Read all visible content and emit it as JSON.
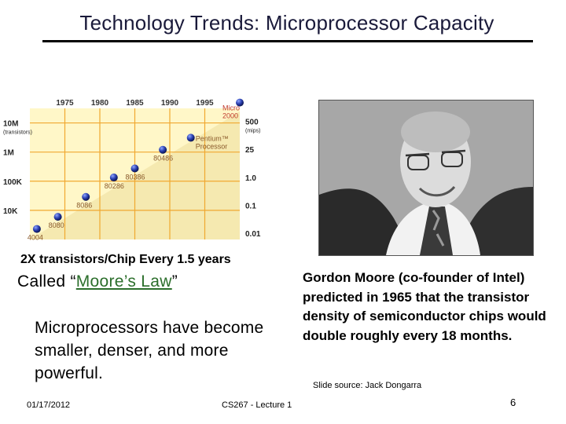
{
  "slide": {
    "title": "Technology Trends: Microprocessor Capacity",
    "caption": "2X transistors/Chip Every 1.5 years",
    "called_prefix": "Called “",
    "called_link": "Moore’s Law",
    "called_suffix": "”",
    "micro_text": "Microprocessors have become smaller, denser, and more powerful.",
    "quote": "Gordon Moore (co-founder of Intel) predicted in 1965 that the transistor density of semiconductor chips would double roughly every 18 months.",
    "source": "Slide source: Jack Dongarra",
    "date": "01/17/2012",
    "lecture": "CS267 - Lecture 1",
    "page_number": "6"
  },
  "photo": {
    "description_icon": "portrait-photo"
  },
  "chart_data": {
    "type": "scatter",
    "x_ticks": [
      "1975",
      "1980",
      "1985",
      "1990",
      "1995"
    ],
    "xlim": [
      1970,
      2000
    ],
    "left_axis": {
      "unit_label": "(transistors)",
      "ticks": [
        {
          "label": "10M",
          "value": 10000000
        },
        {
          "label": "1M",
          "value": 1000000
        },
        {
          "label": "100K",
          "value": 100000
        },
        {
          "label": "10K",
          "value": 10000
        }
      ],
      "scale": "log"
    },
    "right_axis": {
      "unit_label": "(mips)",
      "ticks": [
        "500",
        "25",
        "1.0",
        "0.1",
        "0.01"
      ]
    },
    "points": [
      {
        "label": "4004",
        "x": 1971,
        "y": 2300
      },
      {
        "label": "8080",
        "x": 1974,
        "y": 6000
      },
      {
        "label": "8086",
        "x": 1978,
        "y": 29000
      },
      {
        "label": "80286",
        "x": 1982,
        "y": 134000
      },
      {
        "label": "80386",
        "x": 1985,
        "y": 275000
      },
      {
        "label": "80486",
        "x": 1989,
        "y": 1200000
      },
      {
        "label": "Pentium™ Processor",
        "x": 1993,
        "y": 3100000
      },
      {
        "label": "Micro 2000",
        "x": 2000,
        "y": 50000000
      }
    ],
    "grid": true,
    "colors": {
      "background": "#fff7c8",
      "grid": "#f0a830",
      "marker": "#1f2f9a",
      "trend": "#f5e9b0"
    }
  }
}
